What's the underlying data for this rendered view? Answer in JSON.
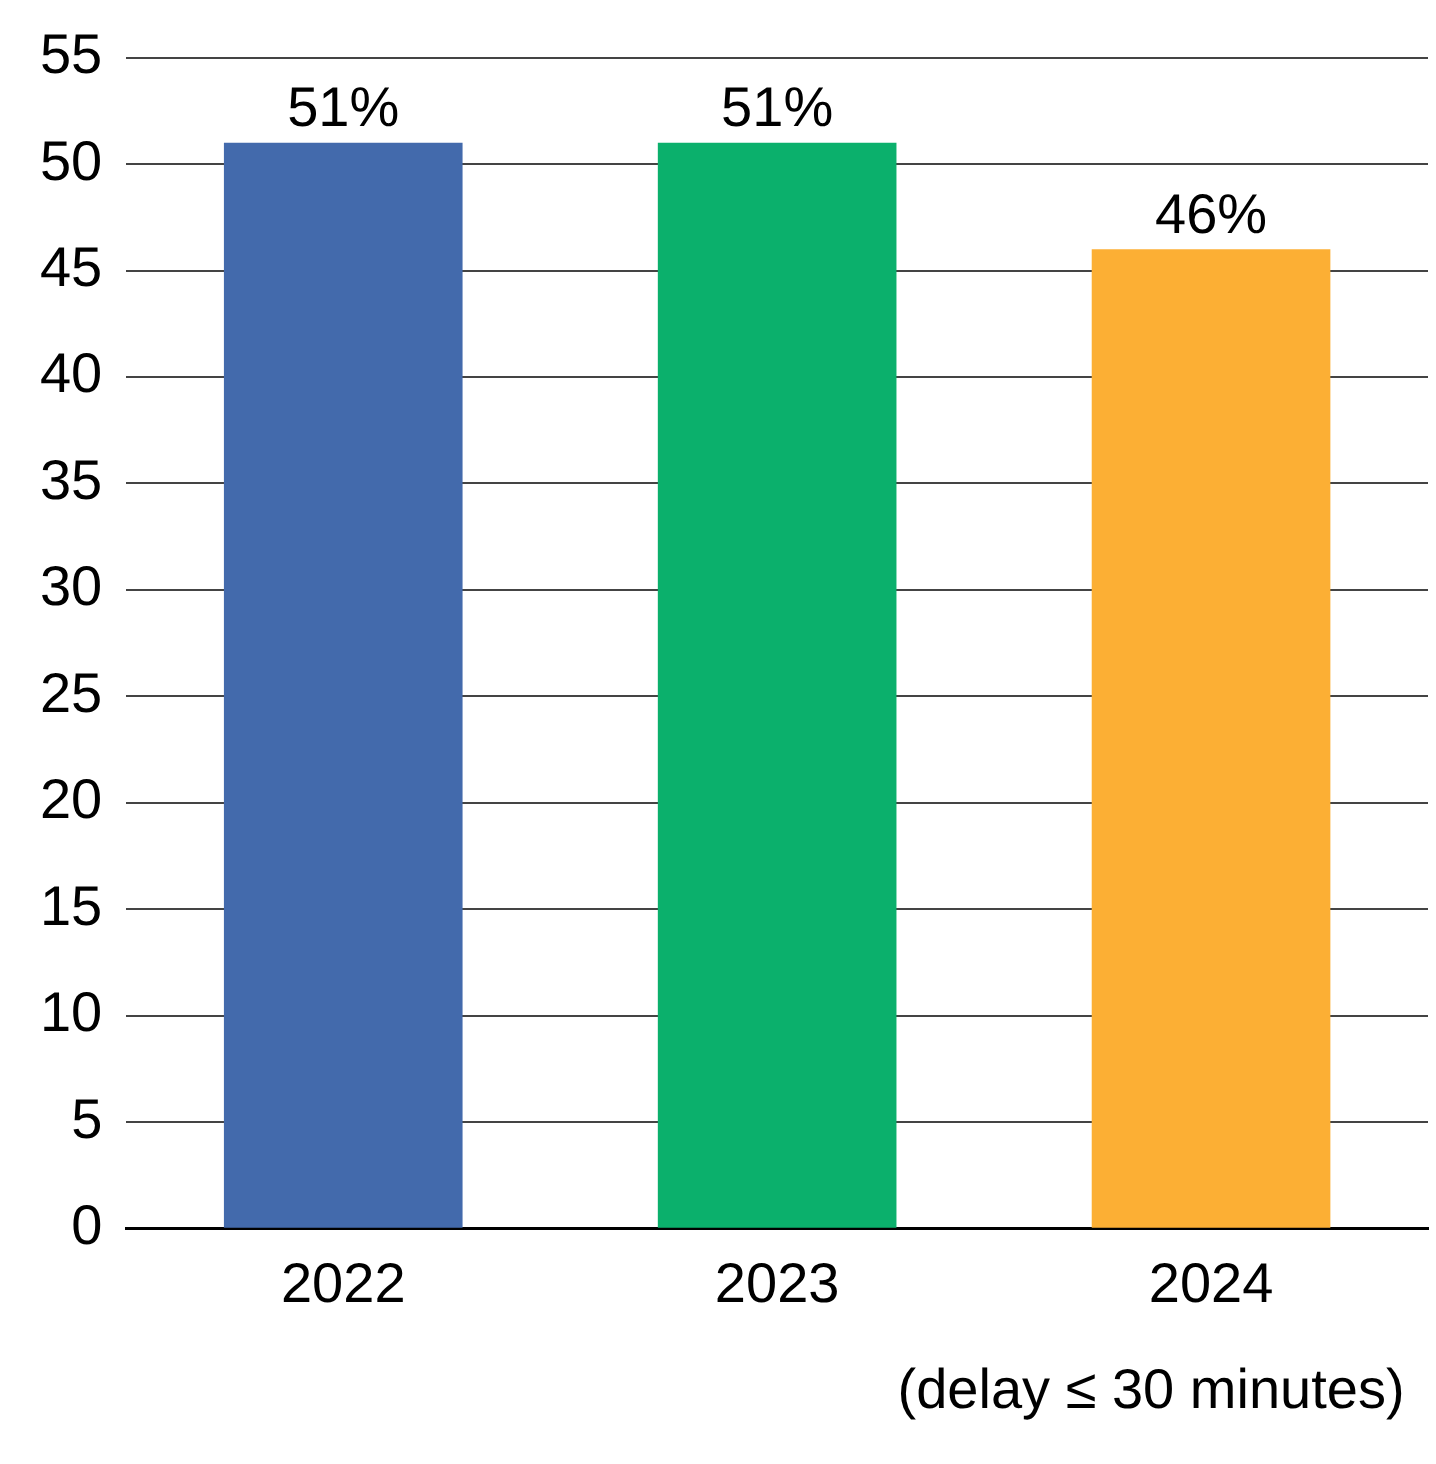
{
  "chart_data": {
    "type": "bar",
    "categories": [
      "2022",
      "2023",
      "2024"
    ],
    "values": [
      51,
      51,
      46
    ],
    "colors": [
      "#436aac",
      "#0bb06c",
      "#fcaf34"
    ],
    "value_labels": [
      "51%",
      "51%",
      "46%"
    ],
    "ylim": [
      0,
      55
    ],
    "yticks": [
      0,
      5,
      10,
      15,
      20,
      25,
      30,
      35,
      40,
      45,
      50,
      55
    ],
    "grid": "y",
    "annotations": [
      "(delay ≤ 30 minutes)"
    ]
  }
}
